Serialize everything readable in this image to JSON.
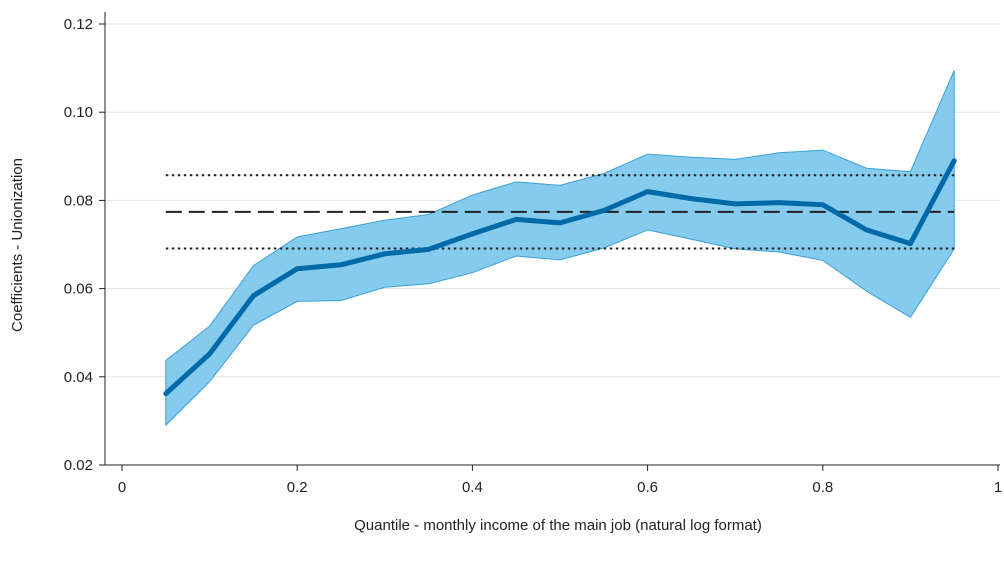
{
  "chart_data": {
    "type": "line",
    "title": "",
    "xlabel": "Quantile - monthly income of the main job (natural log format)",
    "ylabel": "Coefficients - Unionization",
    "xlim": [
      0,
      1
    ],
    "ylim": [
      0.02,
      0.12
    ],
    "xticks": [
      0,
      0.2,
      0.4,
      0.6,
      0.8,
      1
    ],
    "xtick_labels": [
      "0",
      "0.2",
      "0.4",
      "0.6",
      "0.8",
      "1"
    ],
    "yticks": [
      0.02,
      0.04,
      0.06,
      0.08,
      0.1,
      0.12
    ],
    "ytick_labels": [
      "0.02",
      "0.04",
      "0.06",
      "0.08",
      "0.10",
      "0.12"
    ],
    "grid": "horizontal",
    "legend": "none",
    "x": [
      0.05,
      0.1,
      0.15,
      0.2,
      0.25,
      0.3,
      0.35,
      0.4,
      0.45,
      0.5,
      0.55,
      0.6,
      0.65,
      0.7,
      0.75,
      0.8,
      0.85,
      0.9,
      0.95
    ],
    "series": [
      {
        "values": [
          0.0362,
          0.0452,
          0.0584,
          0.0645,
          0.0654,
          0.0679,
          0.0689,
          0.0724,
          0.0757,
          0.0749,
          0.0777,
          0.082,
          0.0804,
          0.0792,
          0.0795,
          0.079,
          0.0733,
          0.0702,
          0.089
        ],
        "lower": [
          0.029,
          0.0389,
          0.0517,
          0.0571,
          0.0573,
          0.0603,
          0.0611,
          0.0636,
          0.0674,
          0.0665,
          0.0692,
          0.0733,
          0.0712,
          0.069,
          0.0683,
          0.0664,
          0.0594,
          0.0535,
          0.069
        ],
        "upper": [
          0.0437,
          0.0515,
          0.0652,
          0.0717,
          0.0736,
          0.0755,
          0.0768,
          0.0812,
          0.0842,
          0.0834,
          0.0861,
          0.0905,
          0.0898,
          0.0893,
          0.0908,
          0.0914,
          0.0873,
          0.0865,
          0.1095
        ]
      }
    ],
    "reference_lines": [
      {
        "style": "dashed",
        "y": 0.0774
      },
      {
        "style": "dotted",
        "y": 0.0857
      },
      {
        "style": "dotted",
        "y": 0.0691
      }
    ],
    "reference_x_range": [
      0.05,
      0.95
    ],
    "colors": {
      "line": "#0069a8",
      "band": "#85cbee",
      "band_edge": "#3a9fd6",
      "reference": "#222222",
      "grid": "#e3e3e3",
      "axis": "#222222"
    }
  }
}
